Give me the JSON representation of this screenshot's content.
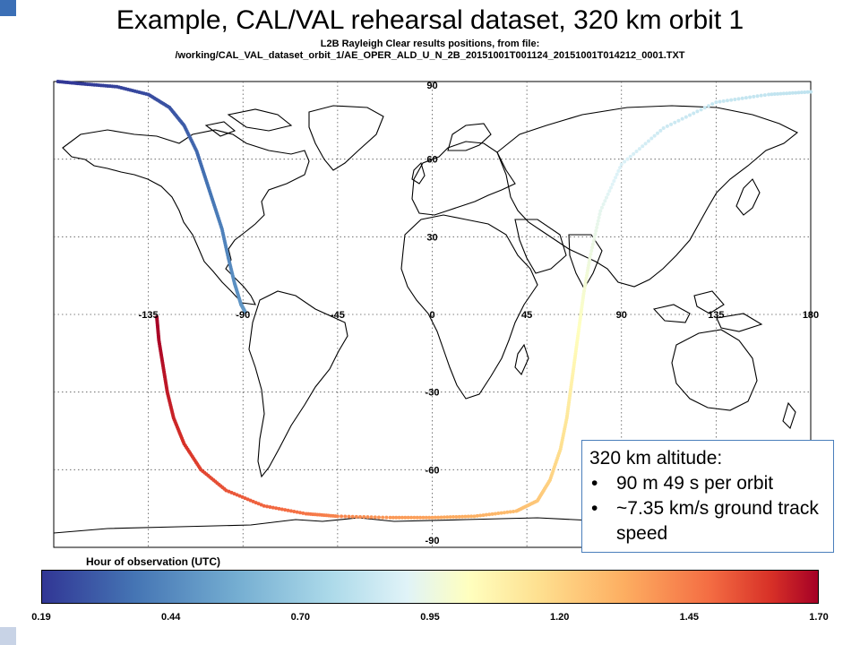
{
  "title": "Example, CAL/VAL rehearsal dataset, 320 km orbit 1",
  "subtitle_line1": "L2B Rayleigh Clear results positions, from file:",
  "subtitle_line2": "/working/CAL_VAL_dataset_orbit_1/AE_OPER_ALD_U_N_2B_20151001T001124_20151001T014212_0001.TXT",
  "map": {
    "projection": "equirectangular",
    "lon_range": [
      -180,
      180
    ],
    "lat_range": [
      -90,
      90
    ],
    "lon_labels": [
      "-135",
      "-90",
      "-45",
      "0",
      "45",
      "90",
      "135",
      "180"
    ],
    "lat_labels": [
      "90",
      "60",
      "30",
      "-30",
      "-60",
      "-90"
    ],
    "grid": "dotted"
  },
  "chart_data": {
    "type": "scatter",
    "description_of_values": "ground track lon/lat colored by hour of observation (UTC)",
    "series": [
      {
        "x": [
          -178,
          -165,
          -150,
          -135,
          -125,
          -118,
          -112,
          -108,
          -104,
          -100,
          -97,
          -94,
          -91,
          -89
        ],
        "y": [
          90,
          89,
          88,
          85,
          80,
          73,
          63,
          53,
          43,
          33,
          22,
          12,
          4,
          1
        ],
        "hour": [
          0.19,
          0.2,
          0.22,
          0.24,
          0.26,
          0.28,
          0.31,
          0.33,
          0.35,
          0.37,
          0.39,
          0.41,
          0.43,
          0.44
        ]
      },
      {
        "x": [
          -131,
          -130,
          -128,
          -126,
          -123,
          -118,
          -110,
          -98,
          -80,
          -60,
          -45,
          -20,
          0,
          20,
          40,
          50,
          56,
          61,
          64,
          66,
          68,
          70,
          72,
          75,
          80,
          90,
          110,
          135,
          160,
          180
        ],
        "y": [
          -1,
          -10,
          -20,
          -30,
          -40,
          -50,
          -60,
          -68,
          -74,
          -77,
          -78,
          -78.5,
          -78.5,
          -78,
          -76,
          -72,
          -64,
          -52,
          -40,
          -28,
          -16,
          -4,
          8,
          22,
          40,
          58,
          72,
          82,
          85,
          86
        ],
        "hour": [
          1.7,
          1.68,
          1.65,
          1.62,
          1.59,
          1.55,
          1.5,
          1.46,
          1.42,
          1.38,
          1.34,
          1.3,
          1.27,
          1.24,
          1.2,
          1.17,
          1.14,
          1.1,
          1.06,
          1.02,
          0.98,
          0.94,
          0.9,
          0.86,
          0.82,
          0.78,
          0.74,
          0.72,
          0.71,
          0.7
        ]
      }
    ],
    "colorbar": {
      "label": "Hour of observation (UTC)",
      "ticks": [
        "0.19",
        "0.44",
        "0.70",
        "0.95",
        "1.20",
        "1.45",
        "1.70"
      ],
      "range": [
        0.19,
        1.7
      ]
    }
  },
  "infobox": {
    "heading": "320 km altitude:",
    "bullet1": "90 m 49 s per orbit",
    "bullet2": "~7.35 km/s ground track speed"
  },
  "colors": {
    "accent": "#3b6fb6",
    "colormap": [
      "#313695",
      "#4575b4",
      "#74add1",
      "#abd9e9",
      "#e0f3f8",
      "#ffffbf",
      "#fee090",
      "#fdae61",
      "#f46d43",
      "#d73027",
      "#a50026"
    ]
  }
}
